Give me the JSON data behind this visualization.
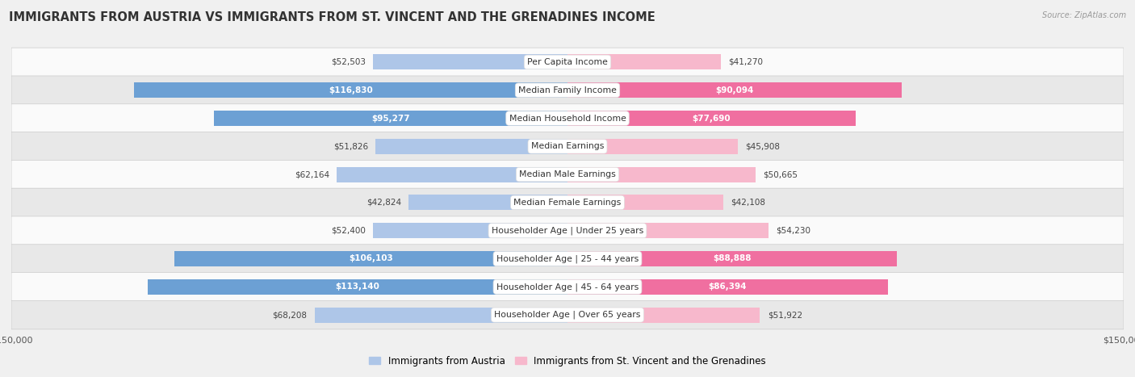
{
  "title": "IMMIGRANTS FROM AUSTRIA VS IMMIGRANTS FROM ST. VINCENT AND THE GRENADINES INCOME",
  "source": "Source: ZipAtlas.com",
  "categories": [
    "Per Capita Income",
    "Median Family Income",
    "Median Household Income",
    "Median Earnings",
    "Median Male Earnings",
    "Median Female Earnings",
    "Householder Age | Under 25 years",
    "Householder Age | 25 - 44 years",
    "Householder Age | 45 - 64 years",
    "Householder Age | Over 65 years"
  ],
  "austria_values": [
    52503,
    116830,
    95277,
    51826,
    62164,
    42824,
    52400,
    106103,
    113140,
    68208
  ],
  "svg_values": [
    41270,
    90094,
    77690,
    45908,
    50665,
    42108,
    54230,
    88888,
    86394,
    51922
  ],
  "austria_color_low": "#aec6e8",
  "austria_color_high": "#6ca0d4",
  "svg_color_low": "#f7b8cc",
  "svg_color_high": "#f06fa0",
  "austria_label": "Immigrants from Austria",
  "svg_label": "Immigrants from St. Vincent and the Grenadines",
  "max_value": 150000,
  "bg_color": "#f0f0f0",
  "row_bg_light": "#fafafa",
  "row_bg_dark": "#e8e8e8",
  "title_fontsize": 10.5,
  "label_fontsize": 7.8,
  "value_fontsize": 7.5,
  "high_threshold": 75000
}
